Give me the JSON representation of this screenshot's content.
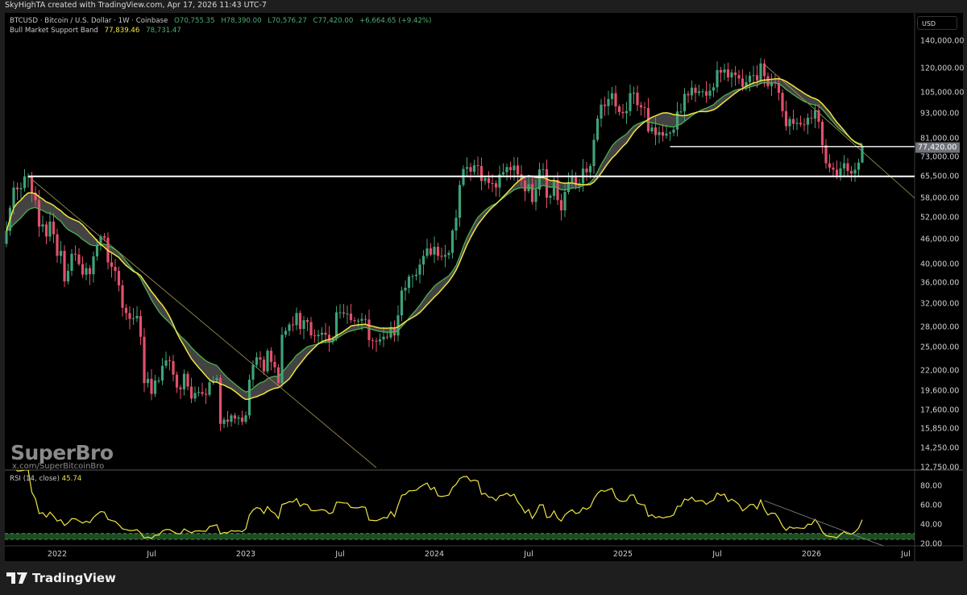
{
  "topbar": {
    "caption": "SkyHighTA created with TradingView.com, Apr 17, 2026 11:43 UTC-7"
  },
  "legend": {
    "symbol": "BTCUSD · Bitcoin / U.S. Dollar · 1W · Coinbase",
    "open": "O70,755.35",
    "high": "H78,390.00",
    "low": "L70,576.27",
    "close": "C77,420.00",
    "change": "+6,664.65 (+9.42%)",
    "indicator": "Bull Market Support Band",
    "sma": "77,839.46",
    "ema": "78,731.47"
  },
  "scale": {
    "currency": "USD",
    "current_price": "77,420.00"
  },
  "watermark": {
    "name": "SuperBro",
    "handle": "x.com/SuperBitcoinBro"
  },
  "rsi": {
    "label": "RSI (14, close)",
    "value": "45.74"
  },
  "footer": {
    "brand": "TradingView"
  },
  "colors": {
    "up": "#3fa27a",
    "down": "#e2506a",
    "sma": "#f0e442",
    "ema": "#4caf50",
    "band": "#5a5a5a",
    "rsi": "#f0e442",
    "line": "#ffffff",
    "trend": "#a89a5a"
  },
  "chart_data": {
    "type": "candlestick",
    "title": "BTCUSD · 1W · Coinbase",
    "scale": "log",
    "ylim": [
      12750,
      140000
    ],
    "start_week": "2021-09-27",
    "price_ticks": [
      "140,000.00",
      "120,000.00",
      "105,000.00",
      "93,000.00",
      "81,000.00",
      "73,000.00",
      "65,500.00",
      "58,000.00",
      "52,000.00",
      "46,000.00",
      "40,000.00",
      "36,000.00",
      "32,000.00",
      "28,000.00",
      "25,000.00",
      "22,000.00",
      "19,600.00",
      "17,600.00",
      "15,850.00",
      "14,250.00",
      "12,750.00"
    ],
    "x_ticks": [
      {
        "label": "2022",
        "week": 14
      },
      {
        "label": "Jul",
        "week": 40
      },
      {
        "label": "2023",
        "week": 66
      },
      {
        "label": "Jul",
        "week": 92
      },
      {
        "label": "2024",
        "week": 118
      },
      {
        "label": "Jul",
        "week": 144
      },
      {
        "label": "2025",
        "week": 170
      },
      {
        "label": "Jul",
        "week": 196
      },
      {
        "label": "2026",
        "week": 222
      },
      {
        "label": "Jul",
        "week": 248
      }
    ],
    "rsi_ticks": [
      "80.00",
      "60.00",
      "40.00",
      "20.00"
    ],
    "last_candle": {
      "open": 70755.35,
      "high": 78390.0,
      "low": 70576.27,
      "close": 77420.0
    },
    "weekly_closes": [
      48200,
      54900,
      61500,
      60900,
      61300,
      65500,
      65500,
      59700,
      57300,
      49400,
      50000,
      46700,
      50800,
      47300,
      41900,
      43100,
      36300,
      38500,
      42400,
      42200,
      40000,
      37700,
      39100,
      37800,
      41800,
      44500,
      46800,
      46400,
      40400,
      39400,
      38500,
      35500,
      31300,
      30400,
      29400,
      29500,
      29900,
      26600,
      20500,
      21000,
      19300,
      20800,
      20800,
      22600,
      23300,
      23200,
      21500,
      20000,
      19800,
      21600,
      20100,
      18800,
      19400,
      19500,
      19300,
      19200,
      20600,
      20800,
      21100,
      16300,
      16700,
      16500,
      17100,
      16800,
      16900,
      16500,
      17100,
      20900,
      22700,
      23700,
      23400,
      21900,
      24600,
      23100,
      22400,
      20500,
      26900,
      27500,
      28500,
      28400,
      30400,
      27800,
      29200,
      28900,
      26800,
      26700,
      26900,
      27200,
      26900,
      25900,
      26300,
      30500,
      30500,
      30300,
      30300,
      29200,
      29100,
      29100,
      29400,
      29300,
      26100,
      26000,
      25900,
      26200,
      26600,
      26500,
      27900,
      26800,
      30000,
      34500,
      35000,
      37300,
      37400,
      37700,
      39900,
      41900,
      43700,
      42200,
      44100,
      41900,
      41700,
      42100,
      42600,
      48300,
      51900,
      62400,
      68300,
      69000,
      67200,
      69700,
      69400,
      63800,
      64900,
      63100,
      63000,
      61500,
      66200,
      67000,
      69000,
      67800,
      69600,
      66200,
      64000,
      60300,
      62700,
      56700,
      60800,
      68100,
      68200,
      58100,
      58700,
      64200,
      57300,
      54100,
      60000,
      63300,
      65600,
      62100,
      63000,
      68400,
      67000,
      69400,
      80400,
      90600,
      98000,
      97200,
      101100,
      104500,
      97000,
      94000,
      93400,
      94500,
      104500,
      104800,
      97700,
      96500,
      96100,
      84300,
      86200,
      82600,
      84000,
      82300,
      83300,
      83700,
      85200,
      94300,
      94300,
      104100,
      103200,
      107800,
      104600,
      105600,
      105600,
      103000,
      106000,
      108000,
      119000,
      117300,
      119400,
      114200,
      117400,
      115700,
      113500,
      108300,
      111200,
      115300,
      115600,
      112200,
      123500,
      115000,
      108700,
      111000,
      110600,
      104700,
      94500,
      86800,
      90400,
      88000,
      88500,
      87700,
      87500,
      91000,
      90600,
      95000,
      89000,
      78000,
      70500,
      68800,
      68000,
      65900,
      68500,
      70500,
      67500,
      66500,
      68000,
      70755.35,
      77420
    ],
    "indicators": {
      "sma_period": 20,
      "ema_period": 21,
      "rsi_period": 14,
      "rsi_band": [
        25,
        31
      ]
    },
    "drawings": {
      "horizontal": [
        {
          "price": 65500,
          "from_week": 6
        },
        {
          "price": 77420,
          "from_week": 183
        }
      ],
      "trendlines": [
        {
          "from": [
            6,
            65500
          ],
          "to": [
            102,
            12750
          ]
        },
        {
          "from": [
            209,
            122800
          ],
          "to": [
            251,
            57400
          ]
        }
      ],
      "rsi_trendline": {
        "from": [
          209,
          65
        ],
        "to": [
          242,
          18
        ]
      }
    }
  }
}
